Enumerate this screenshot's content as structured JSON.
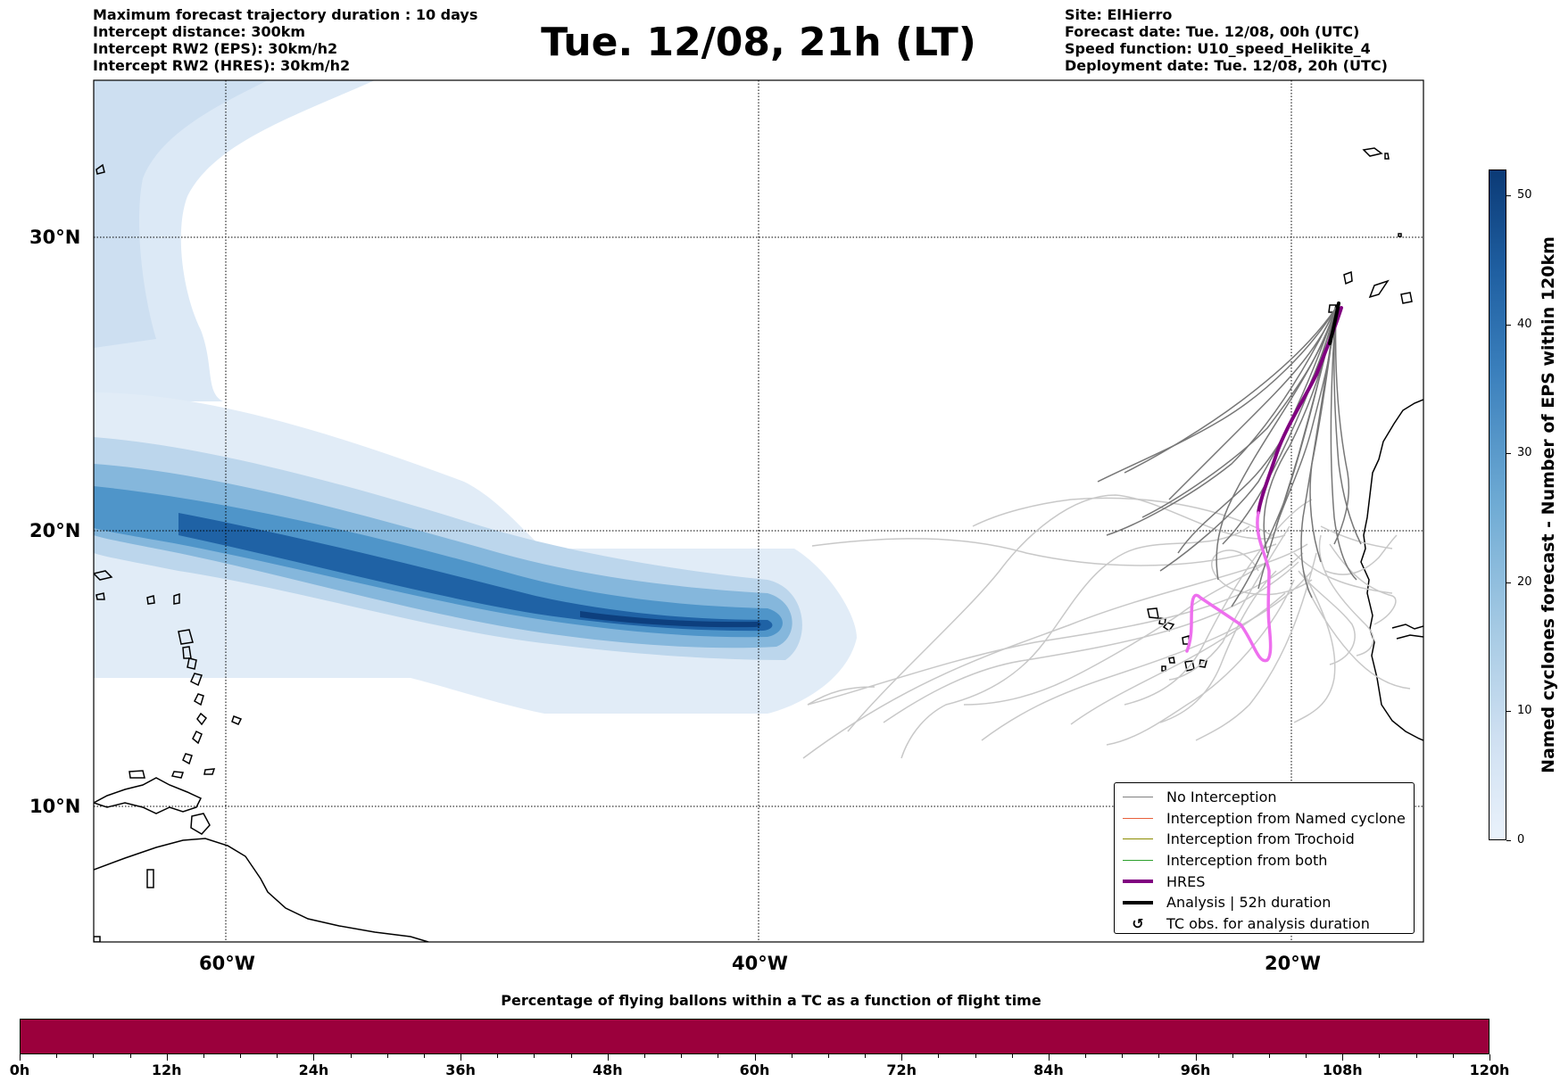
{
  "header": {
    "left_lines": [
      "Maximum forecast trajectory duration : 10 days",
      "Intercept distance: 300km",
      "Intercept RW2 (EPS):  30km/h2",
      "Intercept RW2 (HRES): 30km/h2"
    ],
    "title": "Tue. 12/08, 21h (LT)",
    "right_lines": [
      "Site: ElHierro",
      "Forecast date: Tue. 12/08, 00h (UTC)",
      "Speed function: U10_speed_Helikite_4",
      "Deployment date: Tue. 12/08, 20h (UTC)"
    ]
  },
  "map": {
    "lon_ticks": [
      "60°W",
      "40°W",
      "20°W"
    ],
    "lat_ticks": [
      "30°N",
      "20°N",
      "10°N"
    ],
    "colors": {
      "no_interception": "#808080",
      "ensemble_light": "#c8c8c8",
      "hres": "#800080",
      "analysis_alt": "#ee6fee",
      "analysis": "#000000"
    }
  },
  "colorbar": {
    "label": "Named cyclones forecast - Number of EPS within 120km",
    "ticks": [
      "0",
      "10",
      "20",
      "30",
      "40",
      "50"
    ],
    "range": [
      0,
      52
    ]
  },
  "legend": {
    "items": [
      {
        "label": "No Interception",
        "color": "#808080",
        "style": "thin"
      },
      {
        "label": "Interception from Named cyclone",
        "color": "#e8603c",
        "style": "thin"
      },
      {
        "label": "Interception from Trochoid",
        "color": "#8b8b00",
        "style": "thin"
      },
      {
        "label": "Interception from both",
        "color": "#2ca02c",
        "style": "thin"
      },
      {
        "label": "HRES",
        "color": "#800080",
        "style": "thick"
      },
      {
        "label": "Analysis | 52h duration",
        "color": "#000000",
        "style": "thick"
      },
      {
        "label": "TC obs. for analysis duration",
        "color": "#000000",
        "style": "symbol",
        "symbol": "↺"
      }
    ]
  },
  "flight_bar": {
    "title": "Percentage of flying ballons within a TC as a function of flight time",
    "labels": [
      "0h",
      "12h",
      "24h",
      "36h",
      "48h",
      "60h",
      "72h",
      "84h",
      "96h",
      "108h",
      "120h"
    ],
    "color": "#9b003c",
    "fill_fraction": 1.0
  }
}
